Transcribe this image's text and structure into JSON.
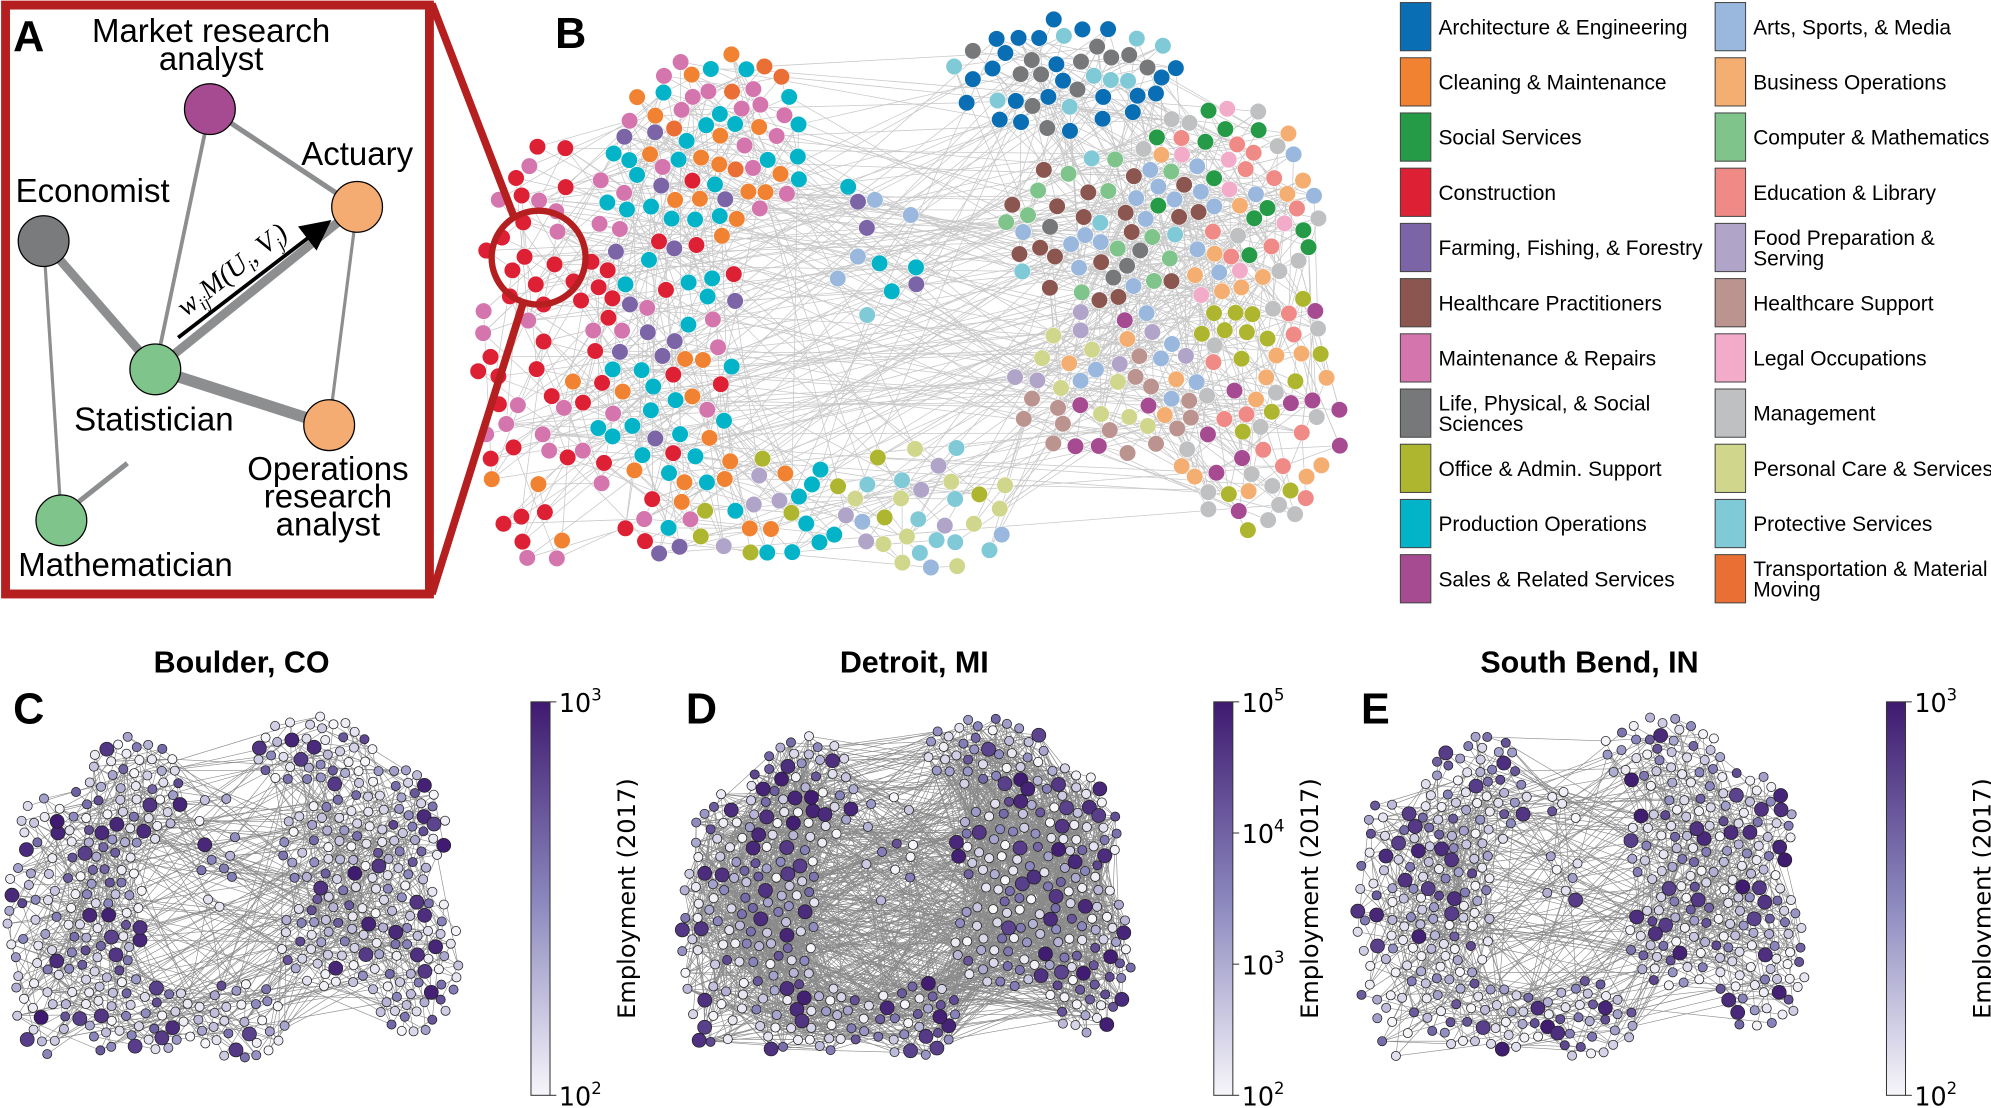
{
  "panel_a": {
    "label": "A",
    "nodes": [
      {
        "name": "Market research",
        "name2": "analyst",
        "color": "#a64b92"
      },
      {
        "name": "Actuary",
        "color": "#f4ac72"
      },
      {
        "name": "Economist",
        "color": "#7a7b7d"
      },
      {
        "name": "Statistician",
        "color": "#7fc48b"
      },
      {
        "name": "Operations",
        "name2": "research",
        "name3": "analyst",
        "color": "#f4ac72"
      },
      {
        "name": "Mathematician",
        "color": "#7fc48b"
      }
    ],
    "formula": {
      "w": "w",
      "w_sub": "ij",
      "m": "M(U",
      "u_sub": "i",
      "v": ", V",
      "v_sub": "j",
      "close": ")"
    },
    "frame_color": "#b51f1f"
  },
  "panel_b": {
    "label": "B",
    "edge_color": "#c8c8c8"
  },
  "legend": [
    {
      "label": "Architecture & Engineering",
      "color": "#0a6eb4"
    },
    {
      "label": "Arts, Sports, & Media",
      "color": "#9ab8dd"
    },
    {
      "label": "Cleaning & Maintenance",
      "color": "#f08232"
    },
    {
      "label": "Business Operations",
      "color": "#f5ae72"
    },
    {
      "label": "Social Services",
      "color": "#259a47"
    },
    {
      "label": "Computer & Mathematics",
      "color": "#7fc48b"
    },
    {
      "label": "Construction",
      "color": "#de2035"
    },
    {
      "label": "Education & Library",
      "color": "#ef8a86"
    },
    {
      "label": "Farming, Fishing, & Forestry",
      "color": "#7c65a7"
    },
    {
      "label": "Food Preparation &",
      "label2": "Serving",
      "color": "#b1a4c9"
    },
    {
      "label": "Healthcare Practitioners",
      "color": "#8b5650"
    },
    {
      "label": "Healthcare Support",
      "color": "#bb948f"
    },
    {
      "label": "Maintenance & Repairs",
      "color": "#d476ad"
    },
    {
      "label": "Legal Occupations",
      "color": "#f2abc8"
    },
    {
      "label": "Life, Physical, & Social",
      "label2": "Sciences",
      "color": "#77787a"
    },
    {
      "label": "Management",
      "color": "#bec0c1"
    },
    {
      "label": "Office & Admin. Support",
      "color": "#adb62e"
    },
    {
      "label": "Personal Care & Services",
      "color": "#d0d68b"
    },
    {
      "label": "Production Operations",
      "color": "#03b3c7"
    },
    {
      "label": "Protective Services",
      "color": "#80c9d6"
    },
    {
      "label": "Sales & Related Services",
      "color": "#a64b92"
    },
    {
      "label": "Transportation & Material",
      "label2": "Moving",
      "color": "#e96f34"
    }
  ],
  "cities": [
    {
      "panel": "C",
      "title": "Boulder, CO",
      "colorbar_label": "Employment (2017)",
      "ticks": [
        {
          "base": "10",
          "exp": "3"
        },
        {
          "base": "10",
          "exp": "2"
        }
      ]
    },
    {
      "panel": "D",
      "title": "Detroit, MI",
      "colorbar_label": "Employment (2017)",
      "ticks": [
        {
          "base": "10",
          "exp": "5"
        },
        {
          "base": "10",
          "exp": "4"
        },
        {
          "base": "10",
          "exp": "3"
        },
        {
          "base": "10",
          "exp": "2"
        }
      ]
    },
    {
      "panel": "E",
      "title": "South Bend, IN",
      "colorbar_label": "Employment (2017)",
      "ticks": [
        {
          "base": "10",
          "exp": "3"
        },
        {
          "base": "10",
          "exp": "2"
        }
      ]
    }
  ],
  "colormap": {
    "low": "#f7f6fa",
    "mid": "#8a86bd",
    "high": "#3f1a70"
  },
  "city_edge_color": "#8a8a8a"
}
